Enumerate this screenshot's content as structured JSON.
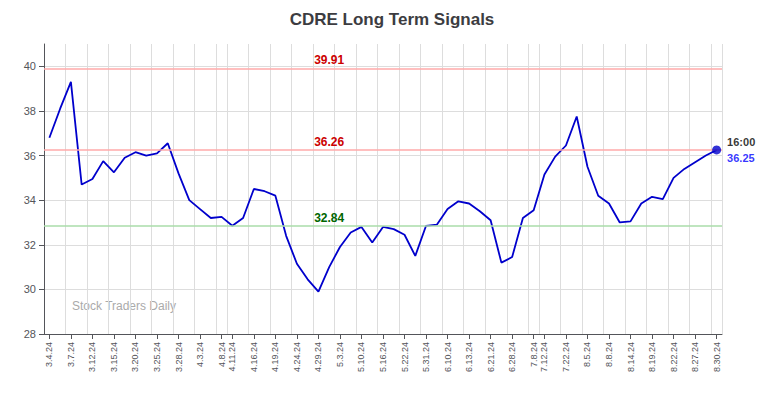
{
  "chart_data": {
    "type": "line",
    "title": "CDRE Long Term Signals",
    "categories": [
      "3.4.24",
      null,
      "3.7.24",
      null,
      "3.12.24",
      null,
      "3.15.24",
      null,
      "3.20.24",
      null,
      "3.25.24",
      null,
      "3.28.24",
      null,
      "4.3.24",
      null,
      "4.8.24",
      "4.11.24",
      null,
      "4.16.24",
      null,
      "4.19.24",
      null,
      "4.24.24",
      null,
      "4.29.24",
      null,
      "5.3.24",
      null,
      "5.10.24",
      null,
      "5.16.24",
      null,
      "5.22.24",
      null,
      "5.31.24",
      null,
      "6.10.24",
      null,
      "6.13.24",
      null,
      "6.21.24",
      null,
      "6.28.24",
      null,
      "7.8.24",
      "7.12.24",
      null,
      "7.22.24",
      null,
      "8.5.24",
      null,
      "8.8.24",
      null,
      "8.14.24",
      null,
      "8.19.24",
      null,
      "8.22.24",
      null,
      "8.27.24",
      null,
      "8.30.24"
    ],
    "values": [
      36.8,
      38.1,
      39.3,
      34.7,
      34.95,
      35.75,
      35.25,
      35.9,
      36.15,
      36.0,
      36.1,
      36.55,
      35.2,
      34.0,
      33.6,
      33.2,
      33.25,
      32.85,
      33.2,
      34.5,
      34.4,
      34.2,
      32.4,
      31.15,
      30.45,
      29.9,
      31.0,
      31.9,
      32.55,
      32.8,
      32.1,
      32.8,
      32.7,
      32.45,
      31.5,
      32.85,
      32.9,
      33.6,
      33.95,
      33.85,
      33.5,
      33.1,
      31.2,
      31.45,
      33.2,
      33.55,
      35.15,
      35.95,
      36.45,
      37.75,
      35.5,
      34.2,
      33.85,
      33.0,
      33.05,
      33.85,
      34.15,
      34.05,
      35.0,
      35.4,
      35.7,
      36.0,
      36.25
    ],
    "color": "#0000cc",
    "ylim": [
      28,
      41
    ],
    "yticks": [
      28,
      30,
      32,
      34,
      36,
      38,
      40
    ],
    "grid": true,
    "reference_lines": [
      {
        "value": 39.91,
        "label": "39.91",
        "color": "#ffaaaa",
        "label_color": "#cc0000"
      },
      {
        "value": 36.26,
        "label": "36.26",
        "color": "#ffaaaa",
        "label_color": "#cc0000"
      },
      {
        "value": 32.84,
        "label": "32.84",
        "color": "#aaddaa",
        "label_color": "#006600"
      }
    ],
    "end_label": {
      "time": "16:00",
      "price": "36.25"
    },
    "watermark": "Stock Traders Daily"
  }
}
